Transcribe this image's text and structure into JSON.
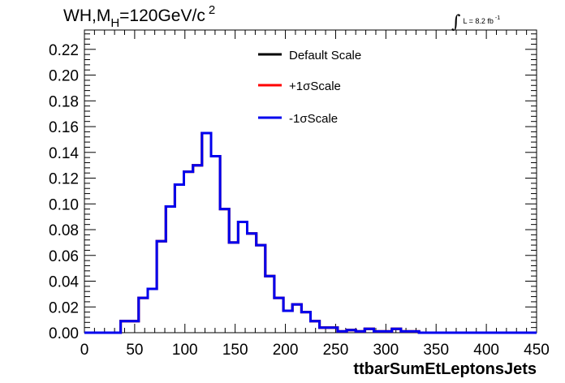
{
  "header": {
    "title_prefix": "WH,M",
    "title_sub": "H",
    "title_mid": "=120GeV/c",
    "title_sup": "2",
    "lumi_text": "L = 8.2 fb",
    "lumi_sup": "-1"
  },
  "chart_data": {
    "type": "line",
    "style": "step-histogram",
    "title": "",
    "xlabel": "ttbarSumEtLeptonsJets",
    "ylabel": "",
    "xlim": [
      0,
      450
    ],
    "ylim": [
      0,
      0.235
    ],
    "x_ticks": [
      0,
      50,
      100,
      150,
      200,
      250,
      300,
      350,
      400,
      450
    ],
    "x_tick_labels": [
      "0",
      "50",
      "100",
      "150",
      "200",
      "250",
      "300",
      "350",
      "400",
      "450"
    ],
    "y_ticks": [
      0,
      0.02,
      0.04,
      0.06,
      0.08,
      0.1,
      0.12,
      0.14,
      0.16,
      0.18,
      0.2,
      0.22
    ],
    "y_tick_labels": [
      "0.00",
      "0.02",
      "0.04",
      "0.06",
      "0.08",
      "0.10",
      "0.12",
      "0.14",
      "0.16",
      "0.18",
      "0.20",
      "0.22"
    ],
    "grid": false,
    "legend_position": "top-center",
    "bin_width": 9,
    "bin_edges_start": 0,
    "series": [
      {
        "name": "Default Scale",
        "color": "#000000",
        "values": [
          0,
          0,
          0,
          0,
          0.009,
          0.009,
          0.027,
          0.034,
          0.071,
          0.098,
          0.115,
          0.125,
          0.13,
          0.155,
          0.137,
          0.096,
          0.07,
          0.086,
          0.077,
          0.068,
          0.044,
          0.027,
          0.017,
          0.022,
          0.016,
          0.009,
          0.004,
          0.004,
          0.001,
          0.002,
          0.001,
          0.003,
          0.001,
          0.001,
          0.003,
          0.001,
          0.001,
          0,
          0,
          0,
          0,
          0,
          0,
          0,
          0,
          0,
          0,
          0,
          0,
          0
        ]
      },
      {
        "name": "+1σScale",
        "color": "#ff0000",
        "values": [
          0,
          0,
          0,
          0,
          0.009,
          0.009,
          0.027,
          0.034,
          0.071,
          0.098,
          0.115,
          0.125,
          0.13,
          0.155,
          0.137,
          0.096,
          0.07,
          0.086,
          0.077,
          0.068,
          0.044,
          0.027,
          0.017,
          0.022,
          0.016,
          0.009,
          0.004,
          0.004,
          0.001,
          0.002,
          0.001,
          0.003,
          0.001,
          0.001,
          0.003,
          0.001,
          0.001,
          0,
          0,
          0,
          0,
          0,
          0,
          0,
          0,
          0,
          0,
          0,
          0,
          0
        ]
      },
      {
        "name": "-1σScale",
        "color": "#0000ee",
        "values": [
          0,
          0,
          0,
          0,
          0.009,
          0.009,
          0.027,
          0.034,
          0.071,
          0.098,
          0.115,
          0.125,
          0.13,
          0.155,
          0.137,
          0.096,
          0.07,
          0.086,
          0.077,
          0.068,
          0.044,
          0.027,
          0.017,
          0.022,
          0.016,
          0.009,
          0.004,
          0.004,
          0.001,
          0.002,
          0.001,
          0.003,
          0.001,
          0.001,
          0.003,
          0.001,
          0.001,
          0,
          0,
          0,
          0,
          0,
          0,
          0,
          0,
          0,
          0,
          0,
          0,
          0
        ]
      }
    ]
  }
}
